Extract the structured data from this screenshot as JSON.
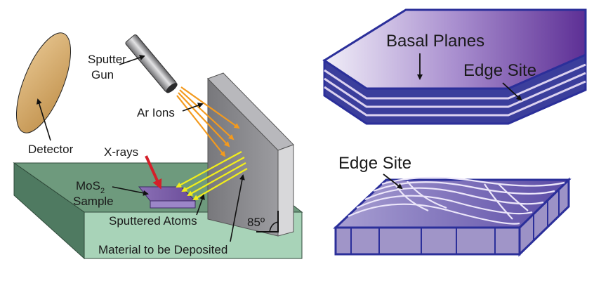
{
  "left_panel": {
    "detector": "Detector",
    "sputter_gun_line1": "Sputter",
    "sputter_gun_line2": "Gun",
    "ar_ions": "Ar Ions",
    "xrays": "X-rays",
    "sample_mos": "MoS",
    "sample_sub": "2",
    "sample_word": "Sample",
    "sputtered_atoms": "Sputtered Atoms",
    "angle": "85º",
    "material": "Material to be Deposited"
  },
  "right_panel": {
    "basal_planes": "Basal Planes",
    "edge_site_top": "Edge Site",
    "edge_site_bottom": "Edge Site"
  },
  "colors": {
    "detector_fill": "#d3a96c",
    "substrate_top": "#6e9a7d",
    "substrate_side": "#a8d3b8",
    "wall": "#8a8a8e",
    "ion_beam": "#f39a1e",
    "atom_beam": "#f2ee1a",
    "xray": "#d4202a",
    "layer_outline": "#2b2f9a"
  }
}
